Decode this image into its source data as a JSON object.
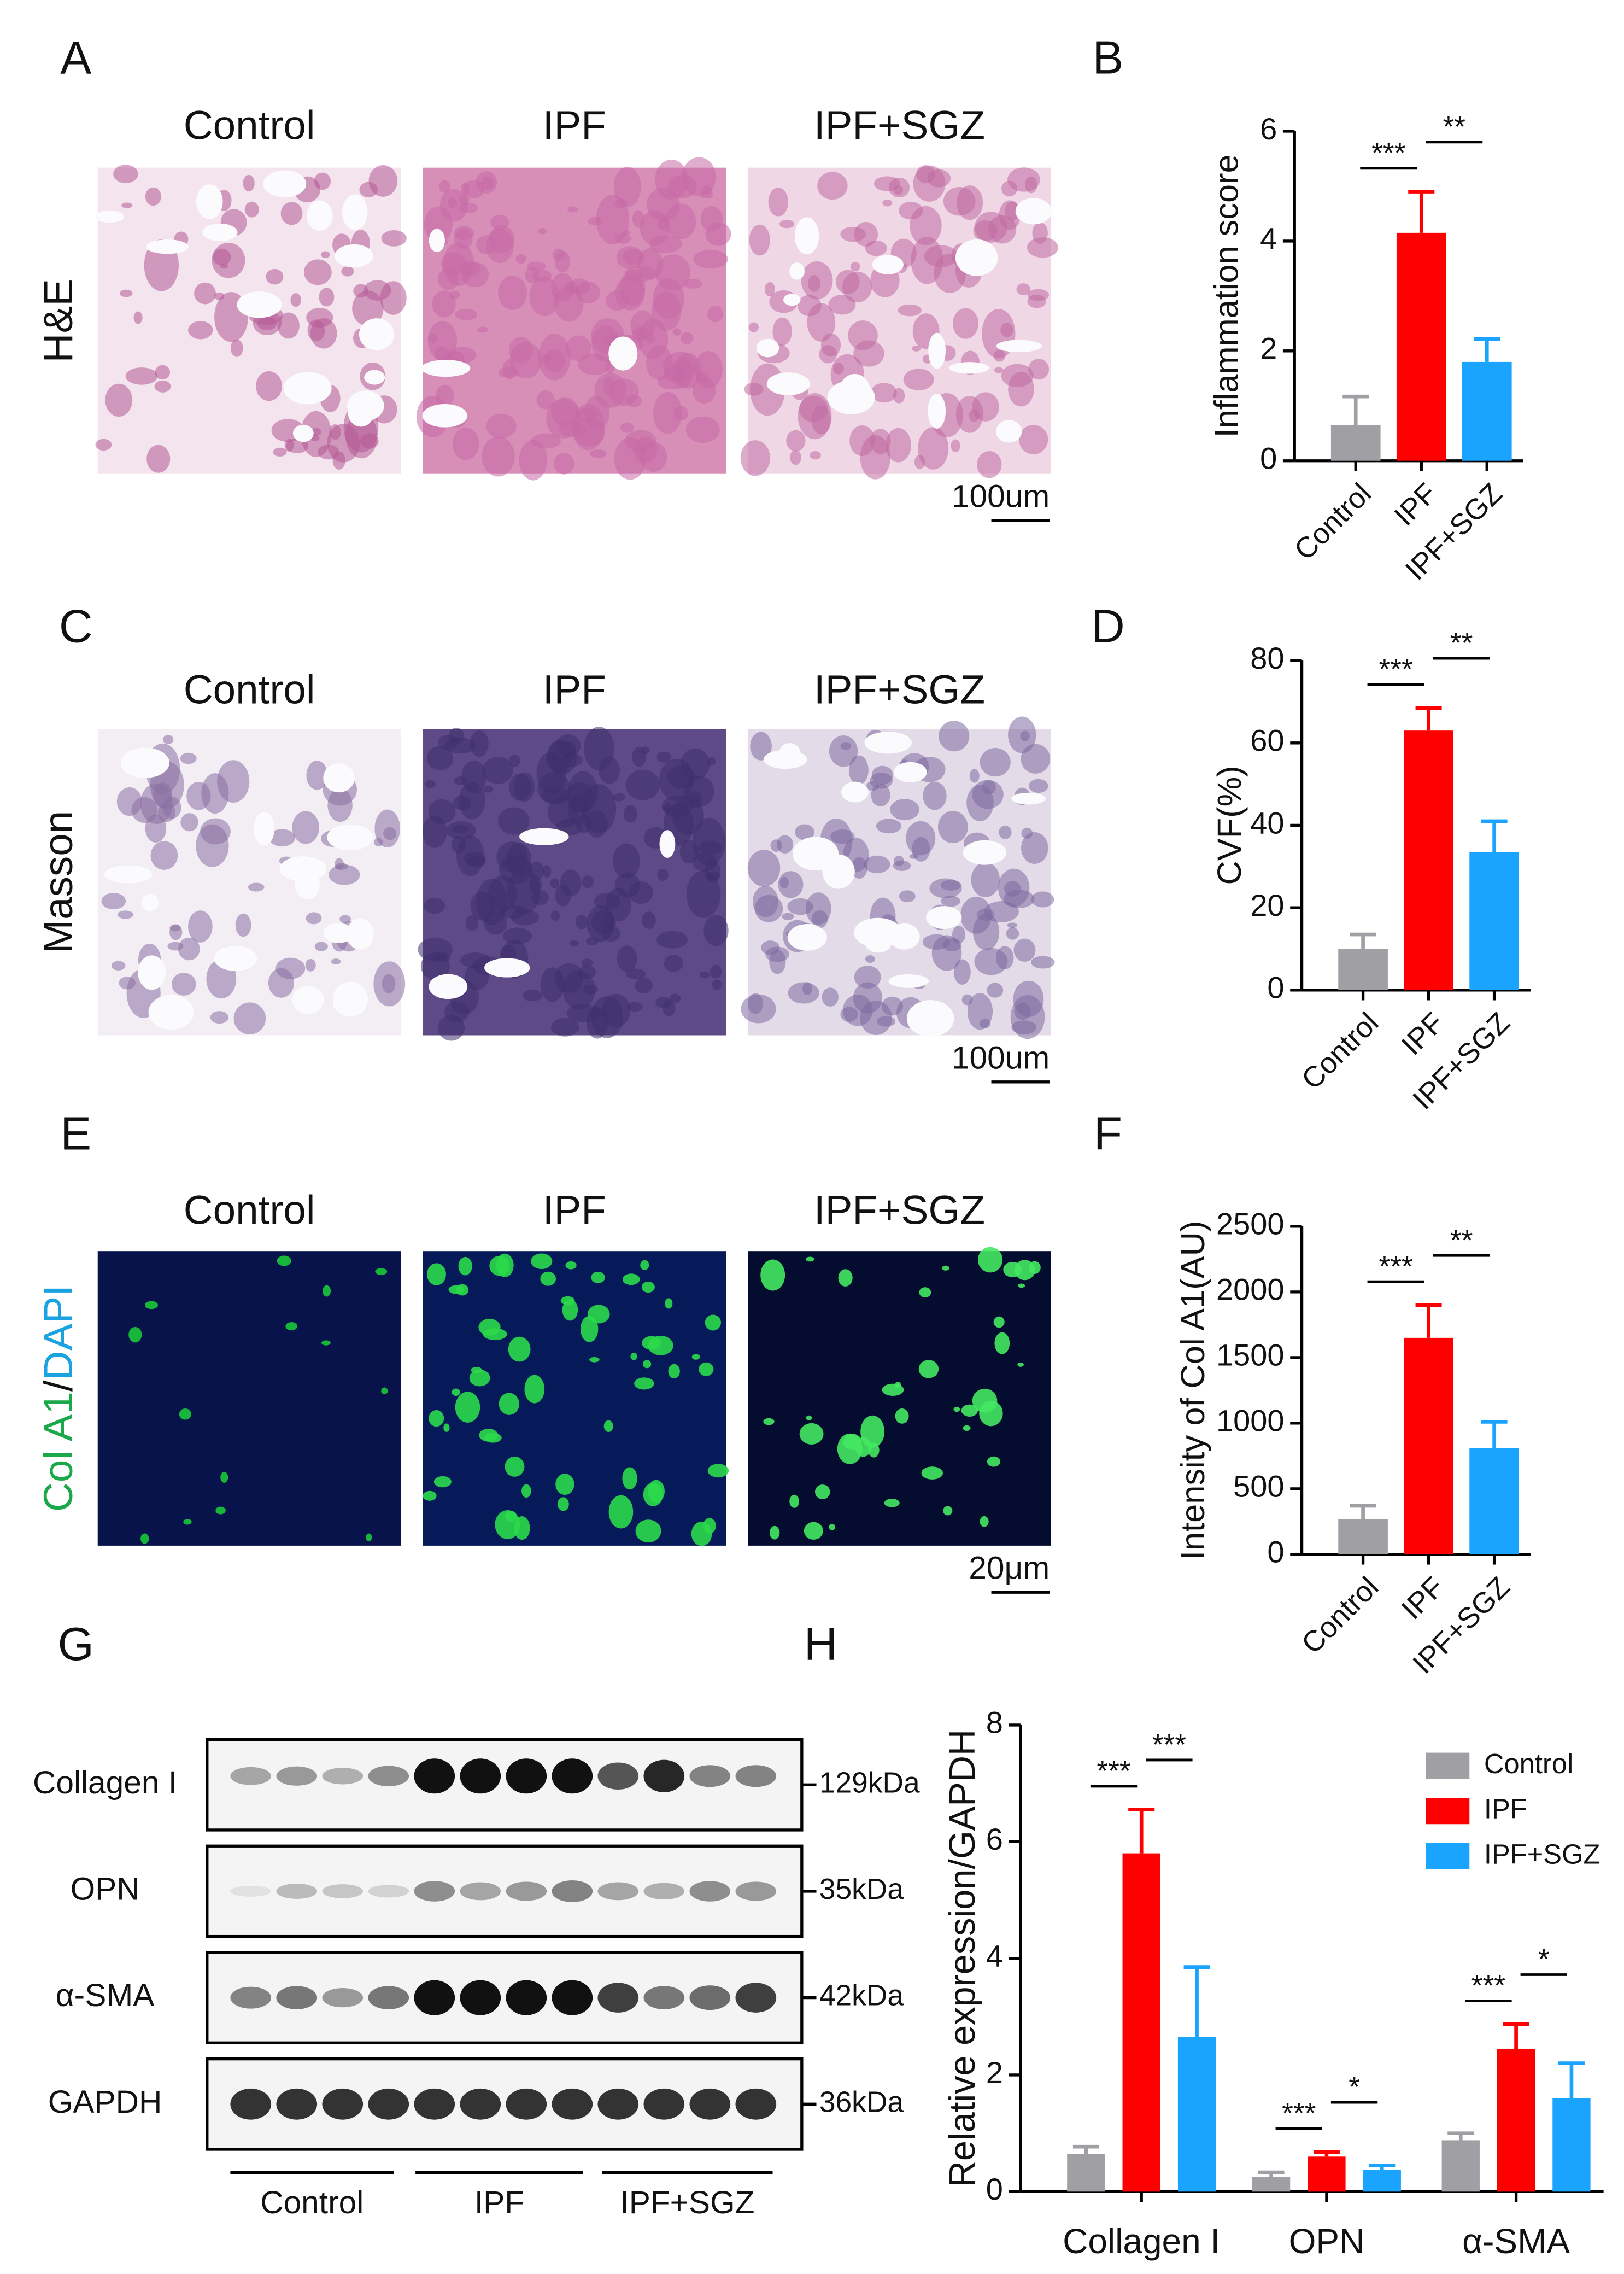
{
  "panel_labels": [
    "A",
    "B",
    "C",
    "D",
    "E",
    "F",
    "G",
    "H"
  ],
  "micrographs": [
    {
      "stain": "H&E",
      "columns": [
        "Control",
        "IPF",
        "IPF+SGZ"
      ],
      "scale_bar": "100um"
    },
    {
      "stain": "Masson",
      "columns": [
        "Control",
        "IPF",
        "IPF+SGZ"
      ],
      "scale_bar": "100um"
    },
    {
      "stain_parts": [
        "Col A1",
        "/",
        "DAPI"
      ],
      "columns": [
        "Control",
        "IPF",
        "IPF+SGZ"
      ],
      "scale_bar": "20μm"
    }
  ],
  "western_blot": {
    "rows": [
      {
        "protein": "Collagen I",
        "size": "129kDa"
      },
      {
        "protein": "OPN",
        "size": "35kDa"
      },
      {
        "protein": "α-SMA",
        "size": "42kDa"
      },
      {
        "protein": "GAPDH",
        "size": "36kDa"
      }
    ],
    "groups": [
      "Control",
      "IPF",
      "IPF+SGZ"
    ]
  },
  "chart_data": [
    {
      "type": "bar",
      "y_label": "Inflammation score",
      "categories": [
        "Control",
        "IPF",
        "IPF+SGZ"
      ],
      "values": [
        0.65,
        4.15,
        1.8
      ],
      "errors": [
        0.52,
        0.75,
        0.42
      ],
      "colors": [
        "#a0a0a4",
        "#ff0000",
        "#1aa3ff"
      ],
      "ylim": [
        0,
        6
      ],
      "yticks": [
        0,
        2,
        4,
        6
      ],
      "significance": [
        {
          "between": [
            "Control",
            "IPF"
          ],
          "label": "***"
        },
        {
          "between": [
            "IPF",
            "IPF+SGZ"
          ],
          "label": "**"
        }
      ]
    },
    {
      "type": "bar",
      "y_label": "CVF(%)",
      "categories": [
        "Control",
        "IPF",
        "IPF+SGZ"
      ],
      "values": [
        10,
        63,
        33.5
      ],
      "errors": [
        3.5,
        5.5,
        7.5
      ],
      "colors": [
        "#a0a0a4",
        "#ff0000",
        "#1aa3ff"
      ],
      "ylim": [
        0,
        80
      ],
      "yticks": [
        0,
        20,
        40,
        60,
        80
      ],
      "significance": [
        {
          "between": [
            "Control",
            "IPF"
          ],
          "label": "***"
        },
        {
          "between": [
            "IPF",
            "IPF+SGZ"
          ],
          "label": "**"
        }
      ]
    },
    {
      "type": "bar",
      "y_label": "Intensity of Col A1(AU)",
      "categories": [
        "Control",
        "IPF",
        "IPF+SGZ"
      ],
      "values": [
        270,
        1650,
        810
      ],
      "errors": [
        100,
        250,
        200
      ],
      "colors": [
        "#a0a0a4",
        "#ff0000",
        "#1aa3ff"
      ],
      "ylim": [
        0,
        2500
      ],
      "yticks": [
        0,
        500,
        1000,
        1500,
        2000,
        2500
      ],
      "significance": [
        {
          "between": [
            "Control",
            "IPF"
          ],
          "label": "***"
        },
        {
          "between": [
            "IPF",
            "IPF+SGZ"
          ],
          "label": "**"
        }
      ]
    },
    {
      "type": "grouped_bar",
      "y_label": "Relative expression/GAPDH",
      "categories": [
        "Collagen I",
        "OPN",
        "α-SMA"
      ],
      "series": [
        {
          "name": "Control",
          "color": "#a0a0a4",
          "values": [
            0.65,
            0.25,
            0.88
          ],
          "errors": [
            0.12,
            0.08,
            0.12
          ]
        },
        {
          "name": "IPF",
          "color": "#ff0000",
          "values": [
            5.8,
            0.6,
            2.45
          ],
          "errors": [
            0.75,
            0.08,
            0.42
          ]
        },
        {
          "name": "IPF+SGZ",
          "color": "#1aa3ff",
          "values": [
            2.65,
            0.37,
            1.6
          ],
          "errors": [
            1.2,
            0.08,
            0.6
          ]
        }
      ],
      "ylim": [
        0,
        8
      ],
      "yticks": [
        0,
        2,
        4,
        6,
        8
      ],
      "legend": "upper right",
      "significance": [
        {
          "group": "Collagen I",
          "between": [
            "Control",
            "IPF"
          ],
          "label": "***"
        },
        {
          "group": "Collagen I",
          "between": [
            "IPF",
            "IPF+SGZ"
          ],
          "label": "***"
        },
        {
          "group": "OPN",
          "between": [
            "Control",
            "IPF"
          ],
          "label": "***"
        },
        {
          "group": "OPN",
          "between": [
            "IPF",
            "IPF+SGZ"
          ],
          "label": "*"
        },
        {
          "group": "α-SMA",
          "between": [
            "Control",
            "IPF"
          ],
          "label": "***"
        },
        {
          "group": "α-SMA",
          "between": [
            "IPF",
            "IPF+SGZ"
          ],
          "label": "*"
        }
      ]
    }
  ]
}
